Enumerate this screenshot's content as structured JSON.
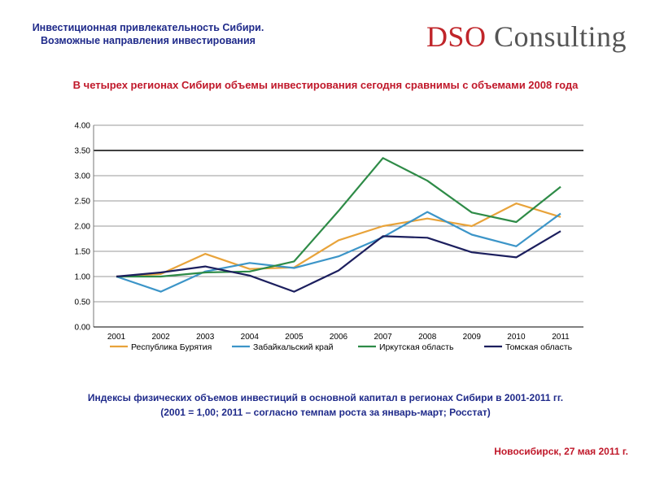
{
  "header": {
    "title_line1": "Инвестиционная привлекательность Сибири.",
    "title_line2": "Возможные направления инвестирования"
  },
  "logo": {
    "brand": "DSO",
    "rest": " Consulting"
  },
  "headline": "В четырех регионах Сибири объемы инвестирования сегодня сравнимы с объемами 2008 года",
  "caption": {
    "line1": "Индексы физических объемов инвестиций в основной капитал в регионах Сибири в 2001-2011 гг.",
    "line2": "(2001 = 1,00; 2011 – согласно темпам роста за январь-март; Росстат)"
  },
  "footer": "Новосибирск, 27 мая 2011 г.",
  "chart_data": {
    "type": "line",
    "categories": [
      "2001",
      "2002",
      "2003",
      "2004",
      "2005",
      "2006",
      "2007",
      "2008",
      "2009",
      "2010",
      "2011"
    ],
    "ylim": [
      0,
      4
    ],
    "yticks": [
      "0.00",
      "0.50",
      "1.00",
      "1.50",
      "2.00",
      "2.50",
      "3.00",
      "3.50",
      "4.00"
    ],
    "series": [
      {
        "name": "Республика Бурятия",
        "color": "#e8a33a",
        "values": [
          1.0,
          1.05,
          1.45,
          1.15,
          1.18,
          1.72,
          2.0,
          2.15,
          2.0,
          2.45,
          2.18
        ]
      },
      {
        "name": "Забайкальский край",
        "color": "#3c95c8",
        "values": [
          1.0,
          0.7,
          1.1,
          1.27,
          1.17,
          1.4,
          1.78,
          2.28,
          1.83,
          1.6,
          2.25
        ]
      },
      {
        "name": "Иркутская область",
        "color": "#2e8b47",
        "values": [
          1.0,
          1.0,
          1.08,
          1.1,
          1.3,
          2.3,
          3.35,
          2.9,
          2.27,
          2.08,
          2.78
        ]
      },
      {
        "name": "Томская область",
        "color": "#1c1f5e",
        "values": [
          1.0,
          1.08,
          1.2,
          1.02,
          0.7,
          1.12,
          1.8,
          1.77,
          1.48,
          1.38,
          1.9
        ]
      }
    ]
  }
}
